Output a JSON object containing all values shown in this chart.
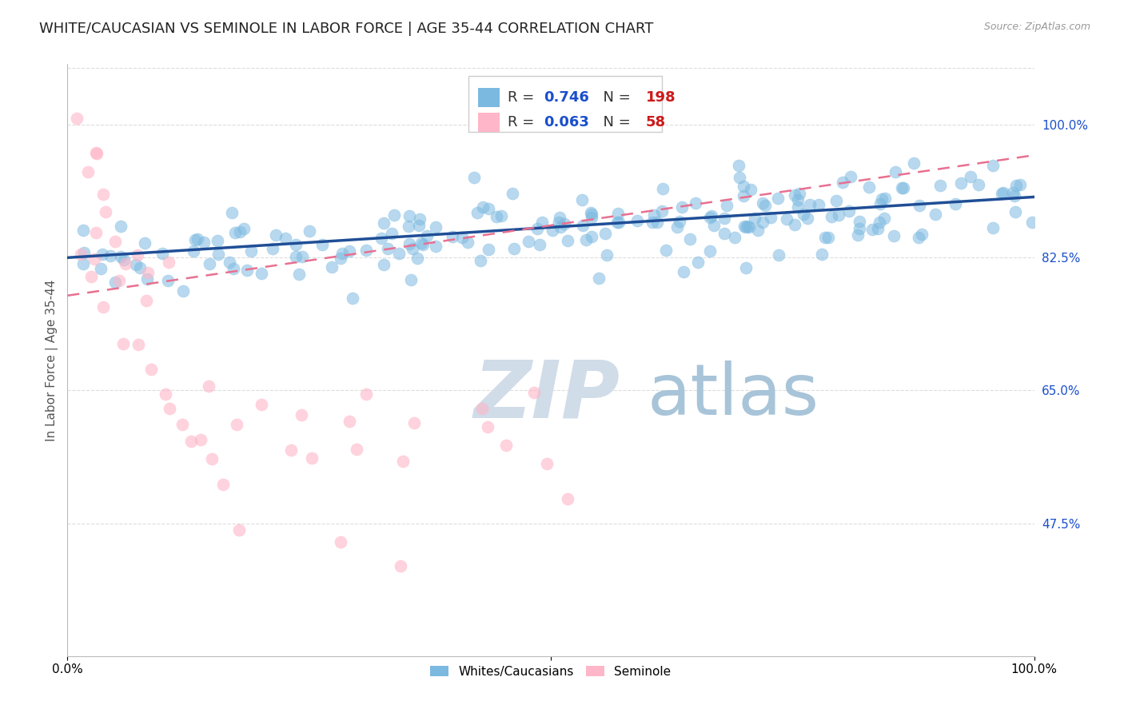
{
  "title": "WHITE/CAUCASIAN VS SEMINOLE IN LABOR FORCE | AGE 35-44 CORRELATION CHART",
  "source": "Source: ZipAtlas.com",
  "ylabel": "In Labor Force | Age 35-44",
  "xlim": [
    0.0,
    1.0
  ],
  "ylim": [
    0.3,
    1.08
  ],
  "yticks": [
    0.475,
    0.65,
    0.825,
    1.0
  ],
  "ytick_labels": [
    "47.5%",
    "65.0%",
    "82.5%",
    "100.0%"
  ],
  "blue_R": 0.746,
  "blue_N": 198,
  "pink_R": 0.063,
  "pink_N": 58,
  "blue_color": "#7cb9e0",
  "pink_color": "#ffb6c8",
  "blue_line_color": "#1f4e96",
  "pink_line_color": "#e87090",
  "legend_label_blue": "Whites/Caucasians",
  "legend_label_pink": "Seminole",
  "watermark_zip": "ZIP",
  "watermark_atlas": "atlas",
  "watermark_color_zip": "#d0dce8",
  "watermark_color_atlas": "#a8c4d8",
  "background_color": "#ffffff",
  "title_fontsize": 13,
  "axis_label_fontsize": 11,
  "tick_fontsize": 11,
  "blue_line_x0": 0.0,
  "blue_line_x1": 1.0,
  "blue_line_y0": 0.825,
  "blue_line_y1": 0.905,
  "pink_line_x0": 0.0,
  "pink_line_x1": 1.0,
  "pink_line_y0": 0.775,
  "pink_line_y1": 0.96,
  "legend_num_color": "#1a4fcc",
  "legend_n_color": "#cc1a1a",
  "grid_color": "#dddddd"
}
